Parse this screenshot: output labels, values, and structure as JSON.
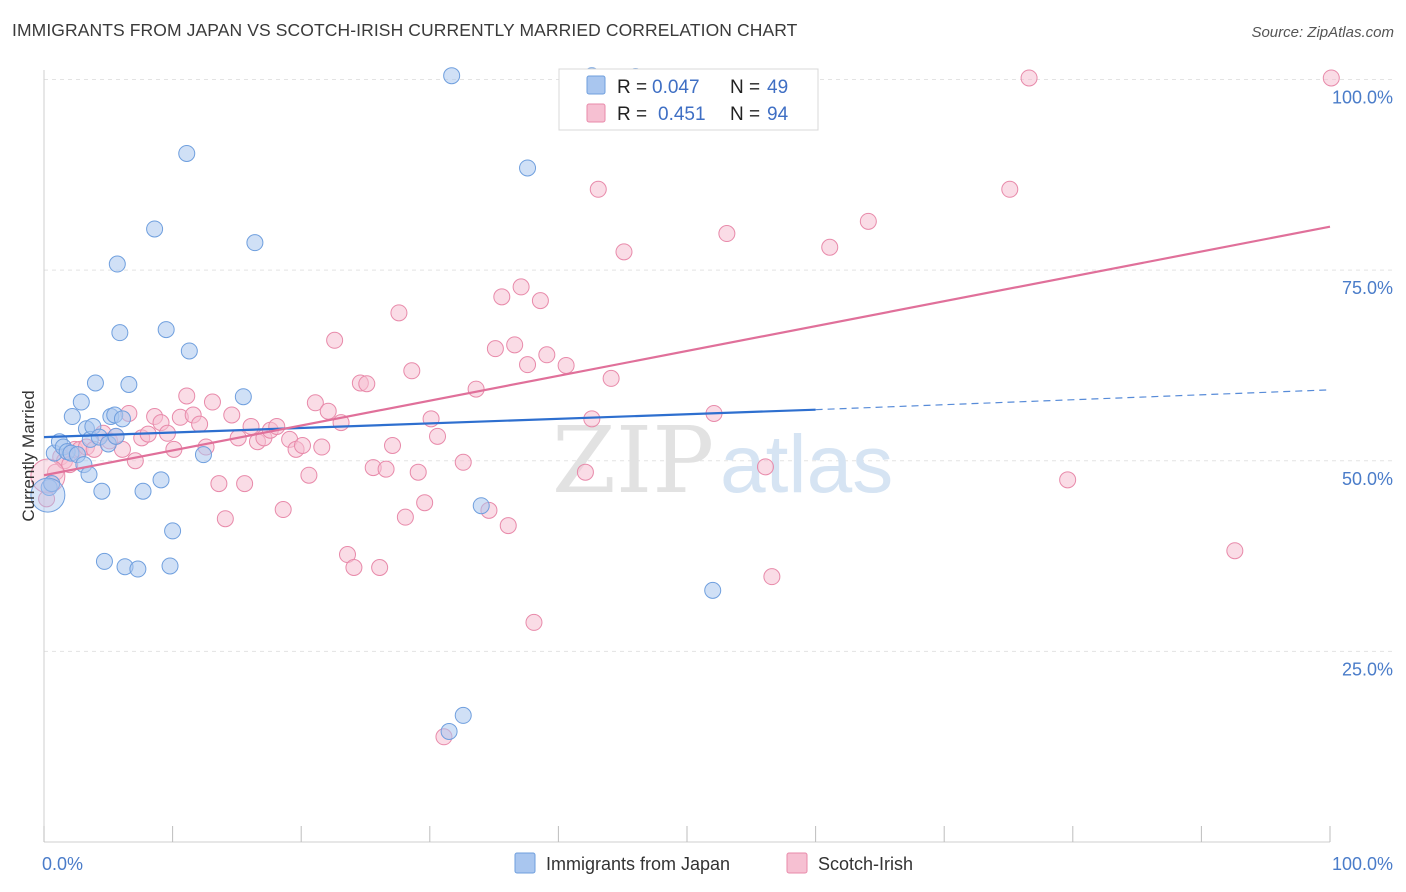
{
  "title": "IMMIGRANTS FROM JAPAN VS SCOTCH-IRISH CURRENTLY MARRIED CORRELATION CHART",
  "source": "Source: ZipAtlas.com",
  "watermark": {
    "zip": "ZIP",
    "atlas": "atlas"
  },
  "colors": {
    "japan_fill": "#a9c6ef",
    "japan_stroke": "#6f9fde",
    "japan_line": "#2e6fcf",
    "scotch_fill": "#f6c0d2",
    "scotch_stroke": "#e88aaa",
    "scotch_line": "#e0709a",
    "grid": "#e3e3e3",
    "tick_label": "#4a7cc9"
  },
  "legend": {
    "rows": [
      {
        "r_label": "R =",
        "r_value": "0.047",
        "n_label": "N =",
        "n_value": "49"
      },
      {
        "r_label": "R =",
        "r_value": "0.451",
        "n_label": "N =",
        "n_value": "94"
      }
    ],
    "bottom": [
      "Immigrants from Japan",
      "Scotch-Irish"
    ]
  },
  "chart_data": {
    "type": "scatter",
    "xlabel": "",
    "ylabel": "Currently Married",
    "xlim": [
      0,
      100
    ],
    "ylim": [
      0,
      105
    ],
    "x_tick_labels": [
      "0.0%",
      "100.0%"
    ],
    "y_tick_labels": [
      "25.0%",
      "50.0%",
      "75.0%",
      "100.0%"
    ],
    "y_ticks": [
      25,
      50,
      75,
      100
    ],
    "series": [
      {
        "name": "Immigrants from Japan",
        "trend": {
          "x0": 0,
          "y0": 53.1,
          "x1": 60,
          "y1": 56.7,
          "dash_to": 100,
          "dash_y": 59.3
        },
        "points": [
          [
            0.4,
            46.5
          ],
          [
            0.6,
            47
          ],
          [
            0.8,
            51
          ],
          [
            1.2,
            52.5
          ],
          [
            1.5,
            51.8
          ],
          [
            1.8,
            51.2
          ],
          [
            2.1,
            51
          ],
          [
            2.2,
            55.8
          ],
          [
            2.6,
            50.8
          ],
          [
            2.9,
            57.7
          ],
          [
            3.1,
            49.5
          ],
          [
            3.3,
            54.2
          ],
          [
            3.5,
            48.2
          ],
          [
            3.6,
            52.8
          ],
          [
            3.8,
            54.5
          ],
          [
            4.0,
            60.2
          ],
          [
            4.3,
            53.1
          ],
          [
            4.5,
            46
          ],
          [
            4.7,
            36.8
          ],
          [
            5.0,
            52.2
          ],
          [
            5.2,
            55.8
          ],
          [
            5.5,
            56
          ],
          [
            5.6,
            53.2
          ],
          [
            5.7,
            75.8
          ],
          [
            5.9,
            66.8
          ],
          [
            6.1,
            55.5
          ],
          [
            6.3,
            36.1
          ],
          [
            6.6,
            60
          ],
          [
            7.3,
            35.8
          ],
          [
            7.7,
            46
          ],
          [
            8.6,
            80.4
          ],
          [
            9.1,
            47.5
          ],
          [
            9.5,
            67.2
          ],
          [
            9.8,
            36.2
          ],
          [
            10.0,
            40.8
          ],
          [
            11.1,
            90.3
          ],
          [
            11.3,
            64.4
          ],
          [
            12.4,
            50.8
          ],
          [
            15.5,
            58.4
          ],
          [
            16.4,
            78.6
          ],
          [
            31.5,
            14.5
          ],
          [
            31.7,
            100.5
          ],
          [
            32.6,
            16.6
          ],
          [
            34.0,
            44.1
          ],
          [
            37.6,
            88.4
          ],
          [
            42.6,
            100.5
          ],
          [
            46.0,
            100.4
          ],
          [
            52.0,
            33
          ],
          [
            0.3,
            45.5
          ]
        ]
      },
      {
        "name": "Scotch-Irish",
        "trend": {
          "x0": 0,
          "y0": 48.1,
          "x1": 100,
          "y1": 80.7
        },
        "points": [
          [
            0.2,
            45
          ],
          [
            0.6,
            47
          ],
          [
            0.9,
            48.5
          ],
          [
            1.3,
            50.5
          ],
          [
            1.6,
            50
          ],
          [
            2.0,
            49.5
          ],
          [
            2.4,
            51.5
          ],
          [
            2.8,
            51.5
          ],
          [
            3.3,
            51.8
          ],
          [
            3.9,
            51.5
          ],
          [
            4.6,
            53.6
          ],
          [
            5.1,
            52.6
          ],
          [
            5.6,
            53.2
          ],
          [
            6.1,
            51.5
          ],
          [
            6.6,
            56.2
          ],
          [
            7.1,
            50
          ],
          [
            7.6,
            53
          ],
          [
            8.1,
            53.5
          ],
          [
            8.6,
            55.8
          ],
          [
            9.1,
            55
          ],
          [
            9.6,
            53.6
          ],
          [
            10.1,
            51.5
          ],
          [
            10.6,
            55.7
          ],
          [
            11.1,
            58.5
          ],
          [
            11.6,
            56
          ],
          [
            12.1,
            54.8
          ],
          [
            12.6,
            51.8
          ],
          [
            13.1,
            57.7
          ],
          [
            13.6,
            47
          ],
          [
            14.1,
            42.4
          ],
          [
            14.6,
            56
          ],
          [
            15.1,
            53
          ],
          [
            15.6,
            47
          ],
          [
            16.1,
            54.5
          ],
          [
            16.6,
            52.5
          ],
          [
            17.1,
            53
          ],
          [
            17.6,
            54
          ],
          [
            18.1,
            54.5
          ],
          [
            18.6,
            43.6
          ],
          [
            19.1,
            52.8
          ],
          [
            19.6,
            51.5
          ],
          [
            20.1,
            52
          ],
          [
            20.6,
            48.1
          ],
          [
            21.1,
            57.6
          ],
          [
            21.6,
            51.8
          ],
          [
            22.1,
            56.5
          ],
          [
            22.6,
            65.8
          ],
          [
            23.1,
            55
          ],
          [
            23.6,
            37.7
          ],
          [
            24.1,
            36
          ],
          [
            24.6,
            60.2
          ],
          [
            25.1,
            60.1
          ],
          [
            25.6,
            49.1
          ],
          [
            26.1,
            36
          ],
          [
            26.6,
            48.9
          ],
          [
            27.1,
            52
          ],
          [
            27.6,
            69.4
          ],
          [
            28.1,
            42.6
          ],
          [
            28.6,
            61.8
          ],
          [
            29.1,
            48.5
          ],
          [
            29.6,
            44.5
          ],
          [
            30.1,
            55.5
          ],
          [
            30.6,
            53.2
          ],
          [
            31.1,
            13.8
          ],
          [
            32.6,
            49.8
          ],
          [
            33.6,
            59.4
          ],
          [
            34.6,
            43.5
          ],
          [
            35.1,
            64.7
          ],
          [
            35.6,
            71.5
          ],
          [
            36.1,
            41.5
          ],
          [
            36.6,
            65.2
          ],
          [
            37.1,
            72.8
          ],
          [
            37.6,
            62.6
          ],
          [
            38.1,
            28.8
          ],
          [
            38.6,
            71
          ],
          [
            39.1,
            63.9
          ],
          [
            40.6,
            62.5
          ],
          [
            42.1,
            48.5
          ],
          [
            42.6,
            55.5
          ],
          [
            43.1,
            85.6
          ],
          [
            44.1,
            60.8
          ],
          [
            45.1,
            77.4
          ],
          [
            52.1,
            56.2
          ],
          [
            53.1,
            79.8
          ],
          [
            56.1,
            49.2
          ],
          [
            56.6,
            34.8
          ],
          [
            61.1,
            78
          ],
          [
            64.1,
            81.4
          ],
          [
            75.1,
            85.6
          ],
          [
            76.6,
            100.2
          ],
          [
            79.6,
            47.5
          ],
          [
            92.6,
            38.2
          ],
          [
            100.1,
            100.2
          ],
          [
            0.3,
            48
          ]
        ]
      }
    ]
  }
}
